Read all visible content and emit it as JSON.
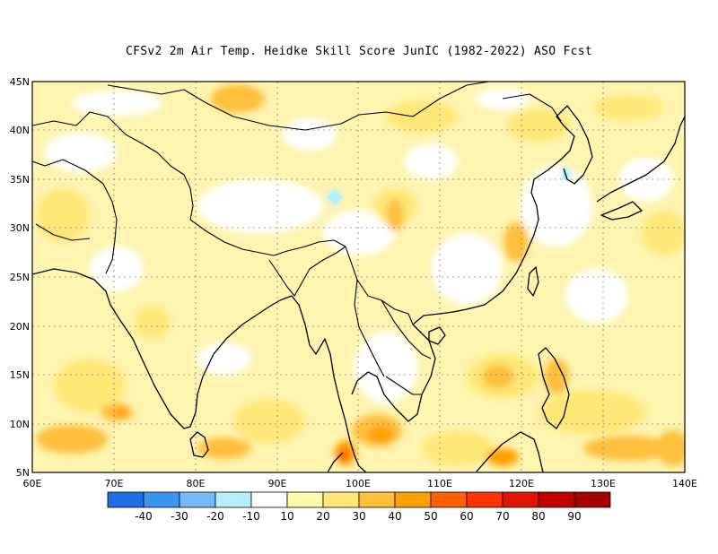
{
  "title": "CFSv2  2m Air Temp. Heidke Skill Score JunIC (1982-2022) ASO Fcst",
  "map": {
    "lon_range": [
      60,
      140
    ],
    "lat_range": [
      5,
      45
    ],
    "lat_ticks": [
      "5N",
      "10N",
      "15N",
      "20N",
      "25N",
      "30N",
      "35N",
      "40N",
      "45N"
    ],
    "lon_ticks": [
      "60E",
      "70E",
      "80E",
      "90E",
      "100E",
      "110E",
      "120E",
      "130E",
      "140E"
    ],
    "grid": "dotted"
  },
  "colorbar": {
    "colors": [
      "#1e6ee6",
      "#3c96f0",
      "#78b9fa",
      "#b4f0fa",
      "#ffffff",
      "#fffaaa",
      "#ffe878",
      "#ffc03c",
      "#ffa000",
      "#ff6000",
      "#ff3200",
      "#e11400",
      "#c00000",
      "#a50000"
    ],
    "labels": [
      "-40",
      "-30",
      "-20",
      "-10",
      "10",
      "20",
      "30",
      "40",
      "50",
      "60",
      "70",
      "80",
      "90"
    ]
  }
}
